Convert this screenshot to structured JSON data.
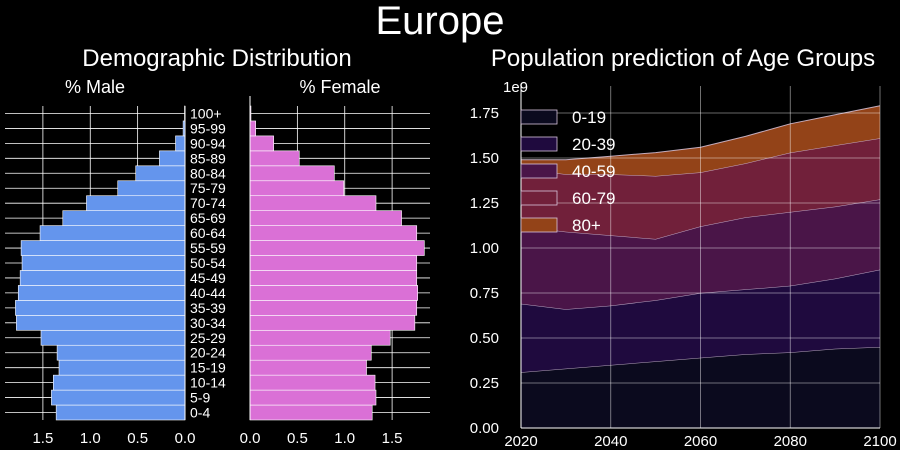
{
  "figure": {
    "suptitle": "Europe"
  },
  "colors": {
    "background": "#000000",
    "text": "#ffffff",
    "grid": "#ffffff",
    "male": "#6495ED",
    "female": "#DA70D6",
    "stack": [
      "#0b0a1e",
      "#1f0a3e",
      "#4a1548",
      "#71203a",
      "#934318"
    ]
  },
  "chart_data": [
    {
      "type": "bar",
      "orientation": "horizontal",
      "title": "Demographic Distribution",
      "male_title": "% Male",
      "female_title": "% Female",
      "categories": [
        "0-4",
        "5-9",
        "10-14",
        "15-19",
        "20-24",
        "25-29",
        "30-34",
        "35-39",
        "40-44",
        "45-49",
        "50-54",
        "55-59",
        "60-64",
        "65-69",
        "70-74",
        "75-79",
        "80-84",
        "85-89",
        "90-94",
        "95-99",
        "100+"
      ],
      "series": [
        {
          "name": "% Male",
          "values": [
            1.36,
            1.41,
            1.39,
            1.33,
            1.35,
            1.52,
            1.78,
            1.79,
            1.76,
            1.74,
            1.72,
            1.73,
            1.53,
            1.29,
            1.04,
            0.71,
            0.52,
            0.27,
            0.1,
            0.02,
            0.005
          ]
        },
        {
          "name": "% Female",
          "values": [
            1.29,
            1.33,
            1.32,
            1.23,
            1.28,
            1.48,
            1.74,
            1.76,
            1.77,
            1.76,
            1.76,
            1.84,
            1.76,
            1.6,
            1.33,
            0.99,
            0.89,
            0.52,
            0.25,
            0.06,
            0.01
          ]
        }
      ],
      "male_ticks": [
        "1.5",
        "1.0",
        "0.5",
        "0.0"
      ],
      "female_ticks": [
        "0.0",
        "0.5",
        "1.0",
        "1.5"
      ],
      "xlim": [
        0,
        1.9
      ],
      "grid": true
    },
    {
      "type": "area",
      "stacked": true,
      "title": "Population prediction of Age Groups",
      "offset_label": "1e9",
      "x": [
        2020,
        2030,
        2040,
        2050,
        2060,
        2070,
        2080,
        2090,
        2100
      ],
      "series": [
        {
          "name": "0-19",
          "values": [
            0.31,
            0.33,
            0.35,
            0.37,
            0.39,
            0.41,
            0.42,
            0.44,
            0.45
          ]
        },
        {
          "name": "20-39",
          "values": [
            0.38,
            0.33,
            0.33,
            0.34,
            0.36,
            0.36,
            0.37,
            0.39,
            0.43
          ]
        },
        {
          "name": "40-59",
          "values": [
            0.43,
            0.43,
            0.39,
            0.34,
            0.37,
            0.4,
            0.41,
            0.4,
            0.39
          ]
        },
        {
          "name": "60-79",
          "values": [
            0.32,
            0.32,
            0.34,
            0.35,
            0.3,
            0.3,
            0.33,
            0.34,
            0.34
          ]
        },
        {
          "name": "80+",
          "values": [
            0.05,
            0.08,
            0.1,
            0.13,
            0.14,
            0.15,
            0.16,
            0.17,
            0.18
          ]
        }
      ],
      "xlim": [
        2020,
        2100
      ],
      "ylim": [
        0,
        1.9
      ],
      "xticks": [
        "2020",
        "2040",
        "2060",
        "2080",
        "2100"
      ],
      "yticks": [
        "0.00",
        "0.25",
        "0.50",
        "0.75",
        "1.00",
        "1.25",
        "1.50",
        "1.75"
      ],
      "legend_location": "upper left",
      "grid": true
    }
  ]
}
